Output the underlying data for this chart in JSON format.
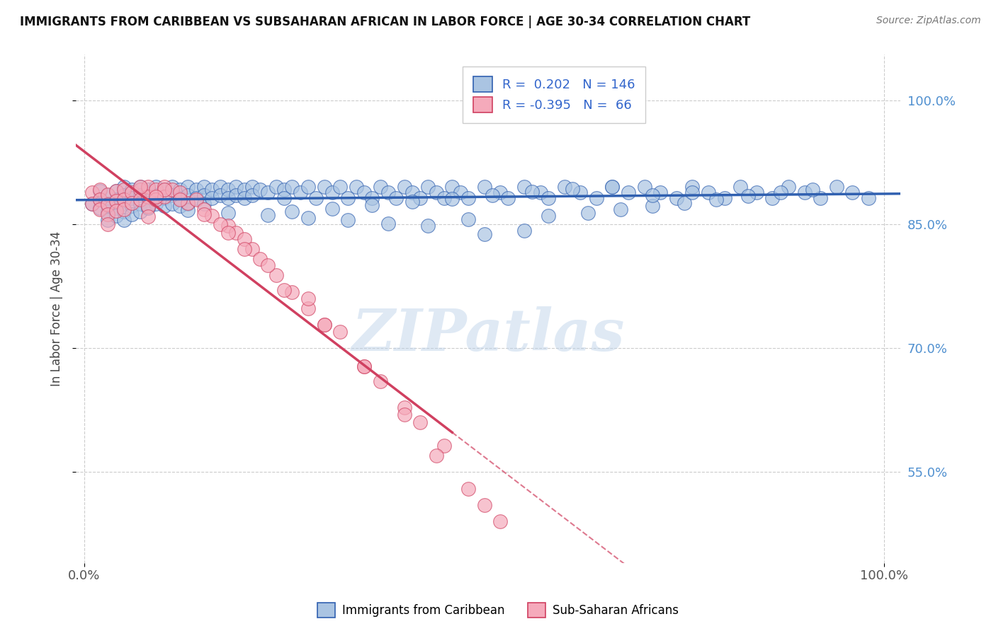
{
  "title": "IMMIGRANTS FROM CARIBBEAN VS SUBSAHARAN AFRICAN IN LABOR FORCE | AGE 30-34 CORRELATION CHART",
  "source": "Source: ZipAtlas.com",
  "ylabel": "In Labor Force | Age 30-34",
  "legend_label_1": "Immigrants from Caribbean",
  "legend_label_2": "Sub-Saharan Africans",
  "R1": 0.202,
  "N1": 146,
  "R2": -0.395,
  "N2": 66,
  "color1": "#aac4e2",
  "color2": "#f5aabb",
  "trendline_color1": "#3060b0",
  "trendline_color2": "#d04060",
  "watermark": "ZIPatlas",
  "ytick_labels": [
    "55.0%",
    "70.0%",
    "85.0%",
    "100.0%"
  ],
  "ytick_values": [
    0.55,
    0.7,
    0.85,
    1.0
  ],
  "xtick_labels": [
    "0.0%",
    "100.0%"
  ],
  "xtick_values": [
    0.0,
    1.0
  ],
  "xlim": [
    -0.01,
    1.02
  ],
  "ylim": [
    0.44,
    1.055
  ],
  "blue_scatter_x": [
    0.01,
    0.02,
    0.02,
    0.02,
    0.03,
    0.03,
    0.03,
    0.03,
    0.04,
    0.04,
    0.04,
    0.04,
    0.05,
    0.05,
    0.05,
    0.05,
    0.05,
    0.06,
    0.06,
    0.06,
    0.06,
    0.07,
    0.07,
    0.07,
    0.07,
    0.08,
    0.08,
    0.08,
    0.09,
    0.09,
    0.09,
    0.1,
    0.1,
    0.1,
    0.11,
    0.11,
    0.11,
    0.12,
    0.12,
    0.12,
    0.13,
    0.13,
    0.13,
    0.14,
    0.14,
    0.15,
    0.15,
    0.15,
    0.16,
    0.16,
    0.17,
    0.17,
    0.18,
    0.18,
    0.19,
    0.19,
    0.2,
    0.2,
    0.21,
    0.21,
    0.22,
    0.23,
    0.24,
    0.25,
    0.25,
    0.26,
    0.27,
    0.28,
    0.29,
    0.3,
    0.31,
    0.32,
    0.33,
    0.34,
    0.35,
    0.36,
    0.37,
    0.38,
    0.39,
    0.4,
    0.41,
    0.42,
    0.43,
    0.44,
    0.45,
    0.46,
    0.47,
    0.48,
    0.5,
    0.52,
    0.53,
    0.55,
    0.57,
    0.58,
    0.6,
    0.62,
    0.64,
    0.66,
    0.68,
    0.7,
    0.72,
    0.74,
    0.76,
    0.78,
    0.8,
    0.82,
    0.84,
    0.86,
    0.88,
    0.9,
    0.92,
    0.94,
    0.96,
    0.98,
    0.5,
    0.55,
    0.43,
    0.38,
    0.33,
    0.28,
    0.23,
    0.18,
    0.13,
    0.08,
    0.03,
    0.48,
    0.58,
    0.63,
    0.67,
    0.71,
    0.75,
    0.79,
    0.83,
    0.87,
    0.91,
    0.26,
    0.31,
    0.36,
    0.41,
    0.46,
    0.51,
    0.56,
    0.61,
    0.66,
    0.71,
    0.76
  ],
  "blue_scatter_y": [
    0.875,
    0.88,
    0.87,
    0.89,
    0.885,
    0.875,
    0.865,
    0.855,
    0.89,
    0.88,
    0.87,
    0.86,
    0.895,
    0.885,
    0.875,
    0.865,
    0.855,
    0.892,
    0.882,
    0.872,
    0.862,
    0.895,
    0.885,
    0.875,
    0.865,
    0.892,
    0.882,
    0.872,
    0.895,
    0.885,
    0.875,
    0.892,
    0.882,
    0.872,
    0.895,
    0.885,
    0.875,
    0.892,
    0.882,
    0.872,
    0.895,
    0.885,
    0.875,
    0.892,
    0.882,
    0.895,
    0.885,
    0.875,
    0.892,
    0.882,
    0.895,
    0.885,
    0.892,
    0.882,
    0.895,
    0.885,
    0.892,
    0.882,
    0.895,
    0.885,
    0.892,
    0.888,
    0.895,
    0.892,
    0.882,
    0.895,
    0.888,
    0.895,
    0.882,
    0.895,
    0.888,
    0.895,
    0.882,
    0.895,
    0.888,
    0.882,
    0.895,
    0.888,
    0.882,
    0.895,
    0.888,
    0.882,
    0.895,
    0.888,
    0.882,
    0.895,
    0.888,
    0.882,
    0.895,
    0.888,
    0.882,
    0.895,
    0.888,
    0.882,
    0.895,
    0.888,
    0.882,
    0.895,
    0.888,
    0.895,
    0.888,
    0.882,
    0.895,
    0.888,
    0.882,
    0.895,
    0.888,
    0.882,
    0.895,
    0.888,
    0.882,
    0.895,
    0.888,
    0.882,
    0.838,
    0.842,
    0.848,
    0.851,
    0.855,
    0.858,
    0.861,
    0.864,
    0.867,
    0.87,
    0.873,
    0.856,
    0.86,
    0.864,
    0.868,
    0.872,
    0.876,
    0.88,
    0.884,
    0.888,
    0.892,
    0.865,
    0.869,
    0.873,
    0.877,
    0.881,
    0.885,
    0.889,
    0.893,
    0.895,
    0.885,
    0.888
  ],
  "pink_scatter_x": [
    0.01,
    0.01,
    0.02,
    0.02,
    0.02,
    0.03,
    0.03,
    0.03,
    0.03,
    0.04,
    0.04,
    0.04,
    0.05,
    0.05,
    0.05,
    0.06,
    0.06,
    0.07,
    0.07,
    0.08,
    0.08,
    0.08,
    0.08,
    0.09,
    0.09,
    0.1,
    0.1,
    0.11,
    0.12,
    0.13,
    0.14,
    0.15,
    0.16,
    0.18,
    0.19,
    0.2,
    0.21,
    0.22,
    0.24,
    0.26,
    0.28,
    0.3,
    0.35,
    0.4,
    0.42,
    0.45,
    0.3,
    0.35,
    0.2,
    0.25,
    0.1,
    0.12,
    0.15,
    0.17,
    0.07,
    0.09,
    0.5,
    0.52,
    0.48,
    0.44,
    0.4,
    0.37,
    0.32,
    0.28,
    0.23,
    0.18
  ],
  "pink_scatter_y": [
    0.888,
    0.875,
    0.892,
    0.88,
    0.868,
    0.886,
    0.874,
    0.862,
    0.85,
    0.89,
    0.878,
    0.866,
    0.892,
    0.88,
    0.868,
    0.888,
    0.876,
    0.892,
    0.88,
    0.895,
    0.883,
    0.871,
    0.859,
    0.892,
    0.88,
    0.895,
    0.883,
    0.892,
    0.888,
    0.876,
    0.88,
    0.868,
    0.86,
    0.848,
    0.84,
    0.832,
    0.82,
    0.808,
    0.788,
    0.768,
    0.748,
    0.728,
    0.678,
    0.628,
    0.61,
    0.582,
    0.728,
    0.678,
    0.82,
    0.77,
    0.892,
    0.88,
    0.862,
    0.85,
    0.895,
    0.883,
    0.51,
    0.49,
    0.53,
    0.57,
    0.62,
    0.66,
    0.72,
    0.76,
    0.8,
    0.84
  ],
  "pink_trendline_solid_end": 0.46,
  "trendline_blue_start_y": 0.868,
  "trendline_blue_end_y": 0.882
}
